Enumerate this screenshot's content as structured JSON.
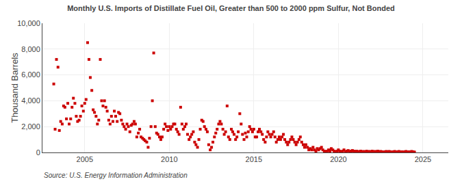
{
  "chart_data": {
    "type": "scatter",
    "title": "Monthly U.S. Imports of Distillate Fuel Oil, Greater than 500 to 2000 ppm Sulfur, Not Bonded",
    "ylabel": "Thousand Barrels",
    "annotations": [
      "Source: U.S. Energy Information Administration"
    ],
    "color": "#cc0000",
    "marker": "square",
    "grid": true,
    "xlim": [
      2002.5,
      2026.5
    ],
    "xticks": [
      2005,
      2010,
      2015,
      2020,
      2025
    ],
    "ylim": [
      0,
      10000
    ],
    "yticks": [
      0,
      {
        "value": 2000,
        "label": "2,000"
      },
      {
        "value": 4000,
        "label": "4,000"
      },
      {
        "value": 6000,
        "label": "6,000"
      },
      {
        "value": 8000,
        "label": "8,000"
      },
      {
        "value": 10000,
        "label": "10,000"
      }
    ],
    "x": [
      2003.17,
      2003.25,
      2003.33,
      2003.42,
      2003.5,
      2003.58,
      2003.67,
      2003.75,
      2003.83,
      2003.92,
      2004.0,
      2004.08,
      2004.17,
      2004.25,
      2004.33,
      2004.42,
      2004.5,
      2004.58,
      2004.67,
      2004.75,
      2004.83,
      2004.92,
      2005.0,
      2005.08,
      2005.17,
      2005.25,
      2005.33,
      2005.42,
      2005.5,
      2005.58,
      2005.67,
      2005.75,
      2005.83,
      2005.92,
      2006.0,
      2006.08,
      2006.17,
      2006.25,
      2006.33,
      2006.42,
      2006.5,
      2006.58,
      2006.67,
      2006.75,
      2006.83,
      2006.92,
      2007.0,
      2007.08,
      2007.17,
      2007.25,
      2007.33,
      2007.42,
      2007.5,
      2007.58,
      2007.67,
      2007.75,
      2007.83,
      2007.92,
      2008.0,
      2008.08,
      2008.17,
      2008.25,
      2008.33,
      2008.42,
      2008.5,
      2008.58,
      2008.67,
      2008.75,
      2008.83,
      2008.92,
      2009.0,
      2009.08,
      2009.17,
      2009.25,
      2009.33,
      2009.42,
      2009.5,
      2009.58,
      2009.67,
      2009.75,
      2009.83,
      2009.92,
      2010.0,
      2010.08,
      2010.17,
      2010.25,
      2010.33,
      2010.42,
      2010.5,
      2010.58,
      2010.67,
      2010.75,
      2010.83,
      2010.92,
      2011.0,
      2011.08,
      2011.17,
      2011.25,
      2011.33,
      2011.42,
      2011.5,
      2011.58,
      2011.67,
      2011.75,
      2011.83,
      2011.92,
      2012.0,
      2012.08,
      2012.17,
      2012.25,
      2012.33,
      2012.42,
      2012.5,
      2012.58,
      2012.67,
      2012.75,
      2012.83,
      2012.92,
      2013.0,
      2013.08,
      2013.17,
      2013.25,
      2013.33,
      2013.42,
      2013.5,
      2013.58,
      2013.67,
      2013.75,
      2013.83,
      2013.92,
      2014.0,
      2014.08,
      2014.17,
      2014.25,
      2014.33,
      2014.42,
      2014.5,
      2014.58,
      2014.67,
      2014.75,
      2014.83,
      2014.92,
      2015.0,
      2015.08,
      2015.17,
      2015.25,
      2015.33,
      2015.42,
      2015.5,
      2015.58,
      2015.67,
      2015.75,
      2015.83,
      2015.92,
      2016.0,
      2016.08,
      2016.17,
      2016.25,
      2016.33,
      2016.42,
      2016.5,
      2016.58,
      2016.67,
      2016.75,
      2016.83,
      2016.92,
      2017.0,
      2017.08,
      2017.17,
      2017.25,
      2017.33,
      2017.42,
      2017.5,
      2017.58,
      2017.67,
      2017.75,
      2017.83,
      2017.92,
      2018.0,
      2018.08,
      2018.17,
      2018.25,
      2018.33,
      2018.42,
      2018.5,
      2018.58,
      2018.67,
      2018.75,
      2018.83,
      2018.92,
      2019.0,
      2019.08,
      2019.17,
      2019.25,
      2019.33,
      2019.42,
      2019.5,
      2019.58,
      2019.67,
      2019.75,
      2019.83,
      2019.92,
      2020.0,
      2020.08,
      2020.17,
      2020.25,
      2020.33,
      2020.42,
      2020.5,
      2020.58,
      2020.67,
      2020.75,
      2020.83,
      2020.92,
      2021.0,
      2021.08,
      2021.17,
      2021.25,
      2021.33,
      2021.42,
      2021.5,
      2021.58,
      2021.67,
      2021.75,
      2021.83,
      2021.92,
      2022.0,
      2022.08,
      2022.17,
      2022.25,
      2022.33,
      2022.42,
      2022.5,
      2022.58,
      2022.67,
      2022.75,
      2022.83,
      2022.92,
      2023.0,
      2023.08,
      2023.17,
      2023.25,
      2023.33,
      2023.42,
      2023.5,
      2023.58,
      2023.67,
      2023.75,
      2023.83,
      2023.92,
      2024.0,
      2024.08,
      2024.17,
      2024.25,
      2024.33,
      2024.42,
      2024.5
    ],
    "values": [
      5300,
      1800,
      7200,
      6600,
      1700,
      2400,
      2200,
      3600,
      3500,
      2600,
      3800,
      2200,
      2600,
      3500,
      4200,
      3800,
      2800,
      2400,
      2500,
      2800,
      3600,
      3200,
      3800,
      4100,
      8500,
      7200,
      5800,
      4800,
      3300,
      3100,
      2800,
      2200,
      2500,
      7200,
      4000,
      3600,
      4000,
      3500,
      3200,
      2500,
      2200,
      2800,
      2400,
      3200,
      2800,
      2400,
      3100,
      3000,
      2500,
      2200,
      2000,
      1800,
      2200,
      2000,
      1600,
      2100,
      2200,
      2400,
      2200,
      1200,
      1500,
      1800,
      1200,
      1100,
      1000,
      900,
      800,
      400,
      1100,
      2000,
      4000,
      7700,
      2000,
      1500,
      1400,
      1200,
      1000,
      1200,
      1800,
      2200,
      2000,
      1700,
      2000,
      1800,
      2000,
      2200,
      2200,
      1800,
      1600,
      1400,
      3500,
      2200,
      1800,
      2000,
      2200,
      1400,
      1000,
      1200,
      1400,
      1600,
      800,
      600,
      400,
      1000,
      1800,
      2500,
      2400,
      2000,
      1800,
      1600,
      600,
      200,
      400,
      800,
      1200,
      1500,
      1800,
      2200,
      2400,
      2200,
      1800,
      1400,
      1600,
      3600,
      1200,
      1000,
      1800,
      1600,
      1400,
      1000,
      1200,
      1600,
      3000,
      2200,
      1400,
      1000,
      1500,
      1200,
      1600,
      2000,
      1800,
      1600,
      1800,
      1200,
      1200,
      1600,
      1800,
      1600,
      1400,
      1000,
      800,
      1200,
      1600,
      1400,
      1200,
      1400,
      1600,
      1200,
      800,
      1000,
      1200,
      1000,
      1200,
      1400,
      1000,
      800,
      600,
      800,
      1000,
      1200,
      1000,
      800,
      600,
      800,
      1000,
      1200,
      800,
      600,
      400,
      600,
      400,
      200,
      300,
      200,
      400,
      200,
      100,
      300,
      200,
      300,
      400,
      200,
      100,
      50,
      100,
      200,
      100,
      300,
      200,
      100,
      50,
      100,
      200,
      100,
      50,
      100,
      200,
      50,
      100,
      150,
      50,
      100,
      150,
      100,
      50,
      100,
      50,
      80,
      100,
      50,
      80,
      50,
      100,
      50,
      80,
      50,
      100,
      50,
      80,
      50,
      100,
      50,
      80,
      50,
      30,
      50,
      80,
      50,
      80,
      50,
      30,
      50,
      80,
      30,
      50,
      80,
      30,
      50,
      30,
      50,
      80,
      30,
      50,
      30,
      80,
      50,
      30
    ]
  }
}
